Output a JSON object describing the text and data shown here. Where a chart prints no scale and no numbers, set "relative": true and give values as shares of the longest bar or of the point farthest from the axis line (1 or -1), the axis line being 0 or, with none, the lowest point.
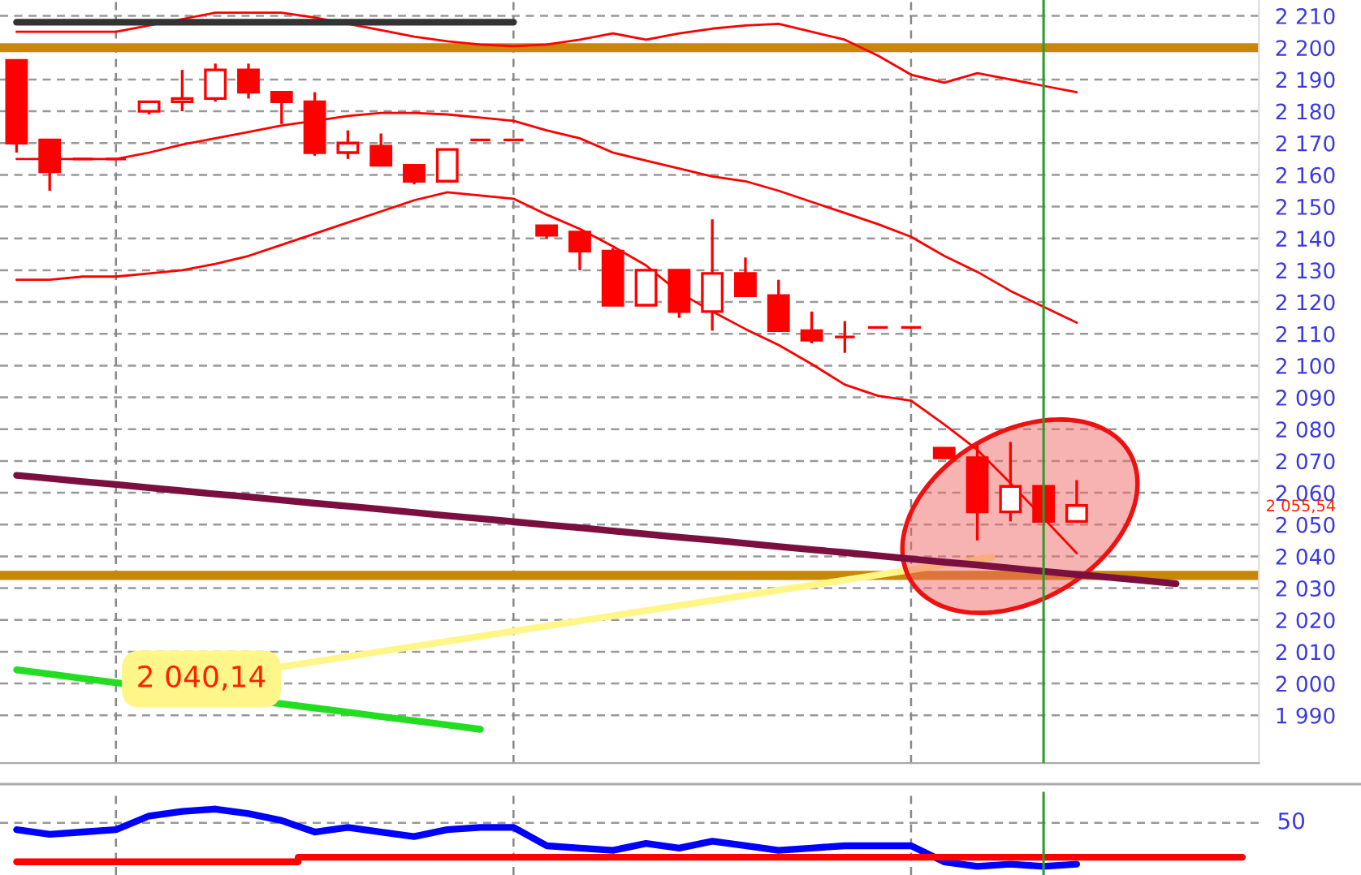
{
  "chart_data": [
    {
      "type": "candlestick",
      "color": "#ff0000",
      "categories": [
        null,
        null,
        null,
        null,
        null,
        null,
        null,
        null,
        null,
        null,
        null,
        null,
        null,
        null,
        null,
        null,
        null,
        null,
        null,
        null,
        null,
        null,
        null,
        null,
        null,
        null,
        null,
        null,
        null,
        null,
        null,
        null,
        null,
        null,
        null,
        null,
        null,
        null
      ],
      "ohlc": [
        [
          2196,
          2196,
          2167,
          2170
        ],
        [
          2171,
          2171,
          2155,
          2161
        ],
        [
          2165,
          2165,
          2165,
          2165
        ],
        [
          2165,
          2165,
          2165,
          2165
        ],
        [
          2180,
          2183,
          2179,
          2183
        ],
        [
          2183,
          2193,
          2180,
          2184
        ],
        [
          2184,
          2195,
          2183,
          2193
        ],
        [
          2193,
          2195,
          2184,
          2186
        ],
        [
          2186,
          2186,
          2176,
          2183
        ],
        [
          2183,
          2186,
          2166,
          2167
        ],
        [
          2167,
          2174,
          2165,
          2170
        ],
        [
          2169,
          2173,
          2163,
          2163
        ],
        [
          2163,
          2163,
          2157,
          2158
        ],
        [
          2158,
          2168,
          2158,
          2168
        ],
        [
          2171,
          2171,
          2171,
          2171
        ],
        [
          2171,
          2171,
          2171,
          2171
        ],
        [
          2144,
          2144,
          2140,
          2141
        ],
        [
          2142,
          2142,
          2130,
          2136
        ],
        [
          2136,
          2137,
          2119,
          2119
        ],
        [
          2119,
          2130,
          2119,
          2130
        ],
        [
          2130,
          2130,
          2115,
          2117
        ],
        [
          2117,
          2146,
          2111,
          2129
        ],
        [
          2129,
          2134,
          2122,
          2122
        ],
        [
          2122,
          2127,
          2111,
          2111
        ],
        [
          2111,
          2117,
          2107,
          2108
        ],
        [
          2109,
          2114,
          2104,
          2109
        ],
        [
          2112,
          2112,
          2112,
          2112
        ],
        [
          2112,
          2112,
          2112,
          2112
        ],
        [
          2074,
          2074,
          2071,
          2071
        ],
        [
          2071,
          2075,
          2045,
          2054
        ],
        [
          2054,
          2076,
          2051,
          2062
        ],
        [
          2062,
          2062,
          2051,
          2051
        ],
        [
          2051,
          2064,
          2051,
          2056
        ],
        null,
        null,
        null,
        null,
        null
      ],
      "series": [
        {
          "type": "line",
          "color": "#ff0000",
          "values": [
            2205,
            2205,
            2205,
            2205,
            2207,
            2209,
            2211,
            2211,
            2211,
            2209.5,
            2207.5,
            2205.5,
            2203.5,
            2202,
            2201,
            2200.5,
            2201,
            2202.5,
            2204.5,
            2202.5,
            2204.5,
            2206,
            2207,
            2207.5,
            2205,
            2202.5,
            2197.5,
            2191.5,
            2189,
            2192,
            2190,
            2188,
            2186,
            null,
            null,
            null,
            null,
            null
          ]
        },
        {
          "type": "line",
          "color": "#ff0000",
          "values": [
            2165,
            2165,
            2165,
            2165,
            2167,
            2169.5,
            2171.5,
            2173.5,
            2175.5,
            2177,
            2178.5,
            2179.5,
            2179.5,
            2179,
            2178,
            2177,
            2174,
            2171.5,
            2167,
            2164.5,
            2162,
            2159.5,
            2158,
            2155,
            2151.5,
            2148,
            2144.5,
            2140.5,
            2134.5,
            2129.5,
            2123.5,
            2118.5,
            2113.5,
            null,
            null,
            null,
            null,
            null
          ]
        },
        {
          "type": "line",
          "color": "#ff0000",
          "values": [
            2127,
            2127,
            2128,
            2128,
            2129,
            2130,
            2132,
            2134.5,
            2138,
            2141.5,
            2145,
            2148.5,
            2152,
            2154.5,
            2153.5,
            2152.5,
            2147.5,
            2143,
            2137.5,
            2131.5,
            2123,
            2117,
            2111.5,
            2106.5,
            2100.5,
            2094,
            2090.5,
            2089,
            2081.5,
            2073.5,
            2063,
            2052,
            2041,
            null,
            null,
            null,
            null,
            null
          ]
        },
        {
          "type": "line",
          "color": "#333333",
          "values": [
            2208,
            2208,
            2208,
            2208,
            2208,
            2208,
            2208,
            2208,
            2208,
            2208,
            2208,
            2208,
            2208,
            2208,
            2208,
            2208,
            null,
            null,
            null,
            null,
            null,
            null,
            null,
            null,
            null,
            null,
            null,
            null,
            null,
            null,
            null,
            null,
            null,
            null,
            null,
            null,
            null,
            null
          ]
        },
        {
          "type": "line",
          "color": "#7b1040",
          "values": [
            2065.5,
            2064.5,
            2063.5,
            2062.6,
            2061.6,
            2060.6,
            2059.6,
            2058.7,
            2057.7,
            2056.7,
            2055.8,
            2054.8,
            2053.8,
            2052.8,
            2051.9,
            2050.9,
            2049.9,
            2049,
            2048,
            2047,
            2046,
            2045.1,
            2044.1,
            2043.1,
            2042.1,
            2041.2,
            2040.2,
            2039.2,
            2038.2,
            2037.3,
            2036.3,
            2035.3,
            2034.3,
            2033.4,
            2032.4,
            2031.4,
            null,
            null
          ]
        },
        {
          "type": "line",
          "color": "#22dd22",
          "values": [
            2004.3,
            2003,
            2001.6,
            null,
            null,
            null,
            null,
            null,
            null,
            1992.3,
            1991,
            1989.6,
            1988.3,
            1987,
            1985.6,
            null,
            null,
            null,
            null,
            null,
            null,
            null,
            null,
            null,
            null,
            null,
            null,
            null,
            null,
            null,
            null,
            null,
            null,
            null,
            null,
            null,
            null,
            null
          ]
        }
      ],
      "ylim": [
        1975,
        2215
      ],
      "yticks": [
        {
          "value": 1990,
          "label": "1 990"
        },
        {
          "value": 2000,
          "label": "2 000"
        },
        {
          "value": 2010,
          "label": "2 010"
        },
        {
          "value": 2020,
          "label": "2 020"
        },
        {
          "value": 2030,
          "label": "2 030"
        },
        {
          "value": 2040,
          "label": "2 040"
        },
        {
          "value": 2050,
          "label": "2 050"
        },
        {
          "value": 2060,
          "label": "2 060"
        },
        {
          "value": 2070,
          "label": "2 070"
        },
        {
          "value": 2080,
          "label": "2 080"
        },
        {
          "value": 2090,
          "label": "2 090"
        },
        {
          "value": 2100,
          "label": "2 100"
        },
        {
          "value": 2110,
          "label": "2 110"
        },
        {
          "value": 2120,
          "label": "2 120"
        },
        {
          "value": 2130,
          "label": "2 130"
        },
        {
          "value": 2140,
          "label": "2 140"
        },
        {
          "value": 2150,
          "label": "2 150"
        },
        {
          "value": 2160,
          "label": "2 160"
        },
        {
          "value": 2170,
          "label": "2 170"
        },
        {
          "value": 2180,
          "label": "2 180"
        },
        {
          "value": 2190,
          "label": "2 190"
        },
        {
          "value": 2200,
          "label": "2 200"
        },
        {
          "value": 2210,
          "label": "2 210"
        }
      ],
      "tick_labels": "y",
      "grid": true,
      "ref_lines": [
        {
          "axis": "y",
          "value": 2200,
          "color": "#c8860a"
        },
        {
          "axis": "y",
          "value": 2034,
          "color": "#c8860a"
        }
      ],
      "annotations": [
        "2 040,14",
        "2 055,54"
      ]
    },
    {
      "type": "line",
      "relative": true,
      "categories": [
        null,
        null,
        null,
        null,
        null,
        null,
        null,
        null,
        null,
        null,
        null,
        null,
        null,
        null,
        null,
        null,
        null,
        null,
        null,
        null,
        null,
        null,
        null,
        null,
        null,
        null,
        null,
        null,
        null,
        null,
        null,
        null,
        null,
        null,
        null,
        null,
        null,
        null
      ],
      "series": [
        {
          "color": "#0000ff",
          "values": [
            0.64,
            0.56,
            0.6,
            0.64,
            0.88,
            0.96,
            1,
            0.92,
            0.8,
            0.6,
            0.68,
            0.6,
            0.52,
            0.64,
            0.68,
            0.68,
            0.36,
            0.32,
            0.28,
            0.4,
            0.32,
            0.44,
            0.36,
            0.28,
            0.32,
            0.36,
            0.36,
            0.36,
            0.08,
            0,
            0.04,
            0,
            0.04,
            null,
            null,
            null,
            null,
            null
          ]
        },
        {
          "type": "step",
          "color": "#ff0000",
          "values": [
            0.08,
            0.08,
            0.08,
            0.08,
            0.08,
            0.08,
            0.08,
            0.08,
            0.08,
            0.16,
            0.16,
            0.16,
            0.16,
            0.16,
            0.16,
            0.16,
            0.16,
            0.16,
            0.16,
            0.16,
            0.16,
            0.16,
            0.16,
            0.16,
            0.16,
            0.16,
            0.16,
            0.16,
            0.16,
            0.16,
            0.16,
            0.16,
            0.16,
            0.16,
            0.16,
            0.16,
            0.16,
            0.16
          ]
        }
      ],
      "tick_labels": false,
      "grid": "x",
      "ref_lines": [
        {
          "axis": "y",
          "value": 0.76,
          "color": "#999999",
          "line_style": "dashed"
        }
      ],
      "annotations": [
        "50"
      ]
    }
  ]
}
